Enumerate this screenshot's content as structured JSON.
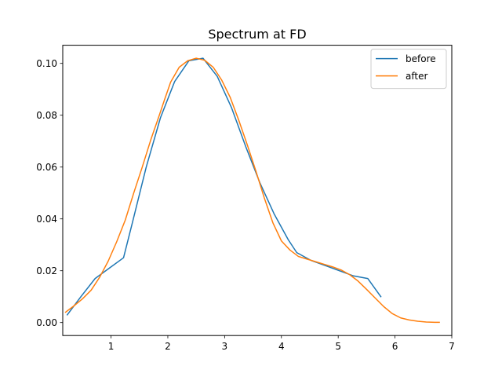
{
  "chart_data": {
    "type": "line",
    "title": "Spectrum at FD",
    "xlabel": "",
    "ylabel": "",
    "xlim": [
      0.15,
      7.0
    ],
    "ylim": [
      -0.005,
      0.107
    ],
    "xticks": [
      1,
      2,
      3,
      4,
      5,
      6,
      7
    ],
    "yticks": [
      0.0,
      0.02,
      0.04,
      0.06,
      0.08,
      0.1
    ],
    "xtick_labels": [
      "1",
      "2",
      "3",
      "4",
      "5",
      "6",
      "7"
    ],
    "ytick_labels": [
      "0.00",
      "0.02",
      "0.04",
      "0.06",
      "0.08",
      "0.10"
    ],
    "grid": false,
    "legend_position": "top-right",
    "series": [
      {
        "name": "before",
        "color": "#1f77b4",
        "x": [
          0.23,
          0.47,
          0.72,
          0.97,
          1.22,
          1.37,
          1.62,
          1.87,
          2.12,
          2.37,
          2.62,
          2.87,
          3.12,
          3.37,
          3.62,
          3.87,
          4.12,
          4.27,
          4.52,
          4.77,
          5.02,
          5.27,
          5.52,
          5.75
        ],
        "y": [
          0.003,
          0.01,
          0.017,
          0.021,
          0.025,
          0.038,
          0.06,
          0.079,
          0.093,
          0.101,
          0.102,
          0.095,
          0.083,
          0.068,
          0.054,
          0.042,
          0.032,
          0.027,
          0.024,
          0.022,
          0.02,
          0.018,
          0.017,
          0.01
        ]
      },
      {
        "name": "after",
        "color": "#ff7f0e",
        "x": [
          0.2,
          0.35,
          0.5,
          0.65,
          0.8,
          0.95,
          1.1,
          1.25,
          1.4,
          1.55,
          1.7,
          1.85,
          1.95,
          2.05,
          2.2,
          2.35,
          2.5,
          2.65,
          2.8,
          2.95,
          3.1,
          3.25,
          3.4,
          3.55,
          3.7,
          3.85,
          4.0,
          4.15,
          4.3,
          4.45,
          4.6,
          4.75,
          4.9,
          5.05,
          5.2,
          5.35,
          5.5,
          5.65,
          5.8,
          5.95,
          6.1,
          6.25,
          6.4,
          6.55,
          6.7,
          6.78
        ],
        "y": [
          0.004,
          0.0065,
          0.0092,
          0.0125,
          0.0175,
          0.0237,
          0.0312,
          0.0395,
          0.05,
          0.06,
          0.0705,
          0.08,
          0.0865,
          0.0928,
          0.0985,
          0.101,
          0.102,
          0.1012,
          0.0985,
          0.0935,
          0.0868,
          0.078,
          0.0685,
          0.0585,
          0.048,
          0.0385,
          0.0315,
          0.028,
          0.0255,
          0.0245,
          0.0235,
          0.0225,
          0.0215,
          0.0203,
          0.0185,
          0.016,
          0.0128,
          0.0095,
          0.0062,
          0.0035,
          0.0018,
          0.001,
          0.0005,
          0.0002,
          0.0001,
          0.0001
        ]
      }
    ]
  }
}
